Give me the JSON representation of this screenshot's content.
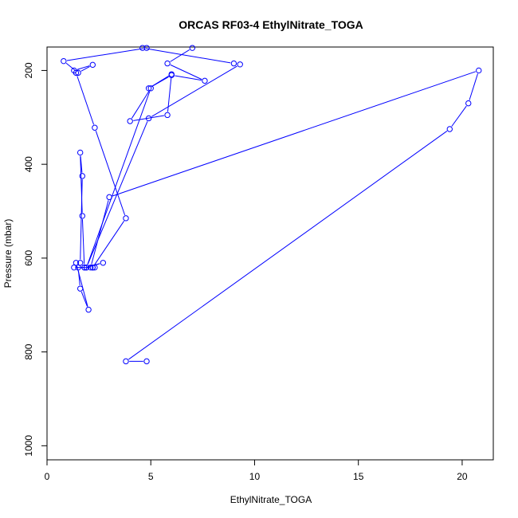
{
  "chart_data": {
    "type": "line",
    "title": "ORCAS RF03-4 EthylNitrate_TOGA",
    "xlabel": "EthylNitrate_TOGA",
    "ylabel": "Pressure (mbar)",
    "xlim": [
      0,
      21.5
    ],
    "ylim": [
      1030,
      150
    ],
    "y_reversed": true,
    "x_ticks": [
      0,
      5,
      10,
      15,
      20
    ],
    "y_ticks": [
      200,
      400,
      600,
      800,
      1000
    ],
    "grid": false,
    "series": [
      {
        "color": "#0000ff",
        "marker": "open-circle",
        "x": [
          4.8,
          3.8,
          19.4,
          20.3,
          20.8,
          3.0,
          2.1,
          2.3,
          2.2,
          1.3,
          1.4,
          2.0,
          1.6,
          1.5,
          1.9,
          2.7,
          1.8,
          1.7,
          1.6,
          1.7,
          1.6,
          1.8,
          2.2,
          3.8,
          2.3,
          1.4,
          1.3,
          2.2,
          1.5,
          0.8,
          4.8,
          4.6,
          9.0,
          9.3,
          4.9,
          1.9,
          5.0,
          4.0,
          5.8,
          6.0,
          4.9,
          6.0,
          7.6,
          5.8,
          7.0
        ],
        "y": [
          820,
          820,
          325,
          270,
          200,
          470,
          620,
          620,
          620,
          620,
          610,
          710,
          665,
          620,
          620,
          610,
          620,
          510,
          375,
          425,
          610,
          620,
          620,
          515,
          322,
          205,
          200,
          188,
          205,
          180,
          152,
          152,
          185,
          187,
          302,
          620,
          238,
          308,
          295,
          208,
          238,
          210,
          222,
          185,
          152
        ]
      }
    ]
  }
}
